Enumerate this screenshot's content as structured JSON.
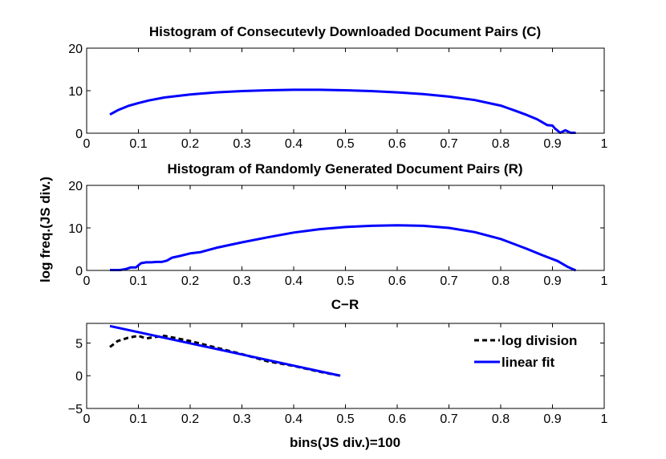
{
  "figure": {
    "ylabel": "log freq.(JS div.)"
  },
  "chart_data": [
    {
      "type": "line",
      "title": "Histogram of Consecutevly Downloaded Document Pairs (C)",
      "xlabel": "",
      "ylabel": "",
      "xlim": [
        0,
        1
      ],
      "ylim": [
        0,
        20
      ],
      "xticks": [
        0,
        0.1,
        0.2,
        0.3,
        0.4,
        0.5,
        0.6,
        0.7,
        0.8,
        0.9,
        1
      ],
      "xtick_labels": [
        "0",
        "0.1",
        "0.2",
        "0.3",
        "0.4",
        "0.5",
        "0.6",
        "0.7",
        "0.8",
        "0.9",
        "1"
      ],
      "yticks": [
        0,
        10,
        20
      ],
      "ytick_labels": [
        "0",
        "10",
        "20"
      ],
      "grid": false,
      "series": [
        {
          "color": "#0000ff",
          "style": "solid",
          "x": [
            0.045,
            0.06,
            0.08,
            0.1,
            0.12,
            0.15,
            0.2,
            0.25,
            0.3,
            0.35,
            0.4,
            0.45,
            0.5,
            0.55,
            0.6,
            0.65,
            0.7,
            0.75,
            0.8,
            0.83,
            0.85,
            0.87,
            0.88,
            0.89,
            0.9,
            0.905,
            0.915,
            0.925,
            0.935,
            0.945
          ],
          "y": [
            4.4,
            5.4,
            6.4,
            7.1,
            7.7,
            8.4,
            9.1,
            9.6,
            9.9,
            10.1,
            10.2,
            10.2,
            10.1,
            9.9,
            9.6,
            9.2,
            8.6,
            7.8,
            6.5,
            5.2,
            4.3,
            3.3,
            2.6,
            1.9,
            1.8,
            1.1,
            0.1,
            0.7,
            0.1,
            0.1
          ]
        }
      ]
    },
    {
      "type": "line",
      "title": "Histogram of Randomly Generated Document Pairs (R)",
      "xlabel": "C−R",
      "ylabel": "",
      "xlim": [
        0,
        1
      ],
      "ylim": [
        0,
        20
      ],
      "xticks": [
        0,
        0.1,
        0.2,
        0.3,
        0.4,
        0.5,
        0.6,
        0.7,
        0.8,
        0.9,
        1
      ],
      "xtick_labels": [
        "0",
        "0.1",
        "0.2",
        "0.3",
        "0.4",
        "0.5",
        "0.6",
        "0.7",
        "0.8",
        "0.9",
        "1"
      ],
      "yticks": [
        0,
        10,
        20
      ],
      "ytick_labels": [
        "0",
        "10",
        "20"
      ],
      "grid": false,
      "series": [
        {
          "color": "#0000ff",
          "style": "solid",
          "x": [
            0.045,
            0.065,
            0.075,
            0.085,
            0.095,
            0.105,
            0.115,
            0.125,
            0.135,
            0.145,
            0.155,
            0.165,
            0.18,
            0.2,
            0.22,
            0.25,
            0.3,
            0.35,
            0.4,
            0.45,
            0.5,
            0.55,
            0.6,
            0.65,
            0.7,
            0.75,
            0.8,
            0.85,
            0.88,
            0.91,
            0.93,
            0.945
          ],
          "y": [
            0.1,
            0.1,
            0.3,
            0.7,
            0.7,
            1.7,
            1.9,
            1.9,
            2.0,
            2.0,
            2.3,
            3.0,
            3.4,
            4.0,
            4.3,
            5.3,
            6.6,
            7.8,
            8.9,
            9.7,
            10.2,
            10.5,
            10.6,
            10.5,
            10.0,
            9.0,
            7.4,
            5.1,
            3.6,
            2.2,
            0.8,
            0.0
          ]
        }
      ]
    },
    {
      "type": "line",
      "title": "",
      "xlabel": "bins(JS div.)=100",
      "ylabel": "",
      "xlim": [
        0,
        1
      ],
      "ylim": [
        -5,
        8
      ],
      "xticks": [
        0,
        0.1,
        0.2,
        0.3,
        0.4,
        0.5,
        0.6,
        0.7,
        0.8,
        0.9,
        1
      ],
      "xtick_labels": [
        "0",
        "0.1",
        "0.2",
        "0.3",
        "0.4",
        "0.5",
        "0.6",
        "0.7",
        "0.8",
        "0.9",
        "1"
      ],
      "yticks": [
        -5,
        0,
        5
      ],
      "ytick_labels": [
        "−5",
        "0",
        "5"
      ],
      "grid": false,
      "legend_position": "top-right",
      "series": [
        {
          "name": "log division",
          "color": "#000000",
          "style": "dashed",
          "x": [
            0.045,
            0.06,
            0.08,
            0.1,
            0.115,
            0.13,
            0.15,
            0.2,
            0.25,
            0.3,
            0.35,
            0.4,
            0.45,
            0.49
          ],
          "y": [
            4.4,
            5.3,
            5.8,
            6.1,
            5.7,
            5.9,
            6.1,
            5.3,
            4.3,
            3.3,
            2.2,
            1.5,
            0.6,
            0.0
          ]
        },
        {
          "name": "linear fit",
          "color": "#0000ff",
          "style": "solid",
          "x": [
            0.045,
            0.49
          ],
          "y": [
            7.6,
            0.0
          ]
        }
      ]
    }
  ]
}
